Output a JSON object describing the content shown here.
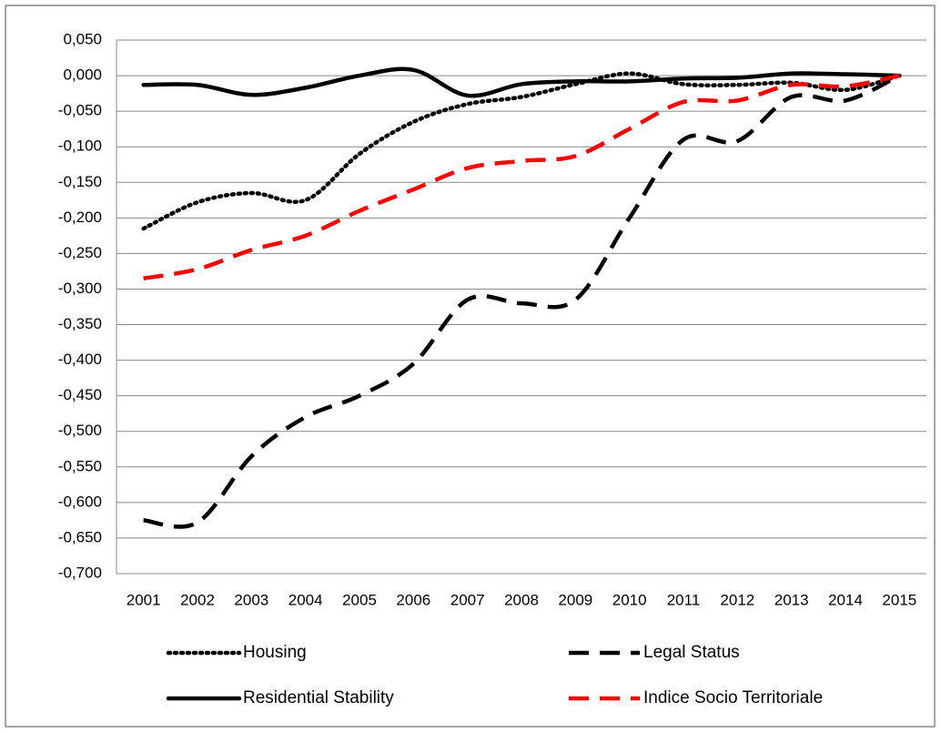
{
  "chart_data": {
    "type": "line",
    "categories": [
      "2001",
      "2002",
      "2003",
      "2004",
      "2005",
      "2006",
      "2007",
      "2008",
      "2009",
      "2010",
      "2011",
      "2012",
      "2013",
      "2014",
      "2015"
    ],
    "series": [
      {
        "name": "Housing",
        "color": "#000000",
        "dash": "dotted",
        "values": [
          -0.215,
          -0.178,
          -0.165,
          -0.175,
          -0.11,
          -0.065,
          -0.04,
          -0.03,
          -0.012,
          0.003,
          -0.012,
          -0.013,
          -0.01,
          -0.02,
          0
        ]
      },
      {
        "name": "Legal Status",
        "color": "#000000",
        "dash": "dashed",
        "values": [
          -0.625,
          -0.628,
          -0.535,
          -0.48,
          -0.45,
          -0.405,
          -0.315,
          -0.32,
          -0.315,
          -0.2,
          -0.09,
          -0.092,
          -0.03,
          -0.035,
          0
        ]
      },
      {
        "name": "Residential Stability",
        "color": "#000000",
        "dash": "solid",
        "values": [
          -0.013,
          -0.013,
          -0.027,
          -0.017,
          0.0,
          0.008,
          -0.028,
          -0.012,
          -0.008,
          -0.008,
          -0.004,
          -0.003,
          0.003,
          0.002,
          0
        ]
      },
      {
        "name": "Indice Socio Territoriale",
        "color": "#ff0000",
        "dash": "dashed",
        "values": [
          -0.285,
          -0.272,
          -0.245,
          -0.225,
          -0.19,
          -0.16,
          -0.13,
          -0.12,
          -0.113,
          -0.075,
          -0.037,
          -0.035,
          -0.013,
          -0.015,
          0
        ]
      }
    ],
    "ylim": [
      -0.7,
      0.05
    ],
    "yticks": [
      {
        "value": 0.05,
        "label": "0,050"
      },
      {
        "value": 0,
        "label": "0,000"
      },
      {
        "value": -0.05,
        "label": "-0,050"
      },
      {
        "value": -0.1,
        "label": "-0,100"
      },
      {
        "value": -0.15,
        "label": "-0,150"
      },
      {
        "value": -0.2,
        "label": "-0,200"
      },
      {
        "value": -0.25,
        "label": "-0,250"
      },
      {
        "value": -0.3,
        "label": "-0,300"
      },
      {
        "value": -0.35,
        "label": "-0,350"
      },
      {
        "value": -0.4,
        "label": "-0,400"
      },
      {
        "value": -0.45,
        "label": "-0,450"
      },
      {
        "value": -0.5,
        "label": "-0,500"
      },
      {
        "value": -0.55,
        "label": "-0,550"
      },
      {
        "value": -0.6,
        "label": "-0,600"
      },
      {
        "value": -0.65,
        "label": "-0,650"
      },
      {
        "value": -0.7,
        "label": "-0,700"
      }
    ],
    "grid": true,
    "legend": "bottom"
  }
}
